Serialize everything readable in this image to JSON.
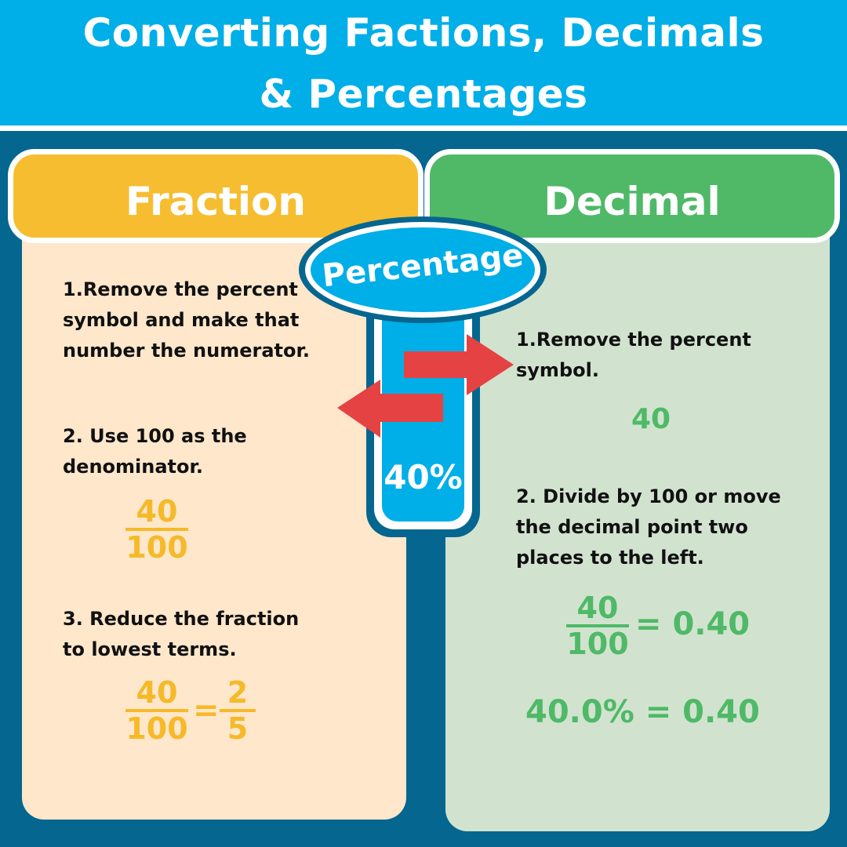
{
  "header": {
    "title_line1": "Converting Factions, Decimals",
    "title_line2": "& Percentages"
  },
  "colors": {
    "header_blue": "#00aee8",
    "background_navy": "#05668f",
    "fraction_yellow": "#f6bd30",
    "fraction_panel": "#fee7cb",
    "decimal_green": "#4fb967",
    "decimal_panel": "#d1e3cf",
    "arrow_red": "#e54343"
  },
  "center": {
    "badge": "Percentage",
    "value": "40%",
    "arrow_icons": [
      "arrow-right-icon",
      "arrow-left-icon"
    ]
  },
  "fraction": {
    "title": "Fraction",
    "step1_line1": "1.Remove the percent",
    "step1_line2": "symbol and make that",
    "step1_line3": "number the numerator.",
    "step2_line1": "2. Use 100 as the",
    "step2_line2": "denominator.",
    "example1": {
      "numerator": "40",
      "denominator": "100"
    },
    "step3_line1": "3. Reduce the fraction",
    "step3_line2": "to lowest terms.",
    "example2": {
      "numerator": "40",
      "denominator": "100",
      "equals": "=",
      "reduced_numerator": "2",
      "reduced_denominator": "5"
    }
  },
  "decimal": {
    "title": "Decimal",
    "step1_line1": "1.Remove the percent",
    "step1_line2": "symbol.",
    "step1_result": "40",
    "step2_line1": "2. Divide by 100 or move",
    "step2_line2": "the decimal point two",
    "step2_line3": "places to the left.",
    "example1": {
      "numerator": "40",
      "denominator": "100",
      "result": "= 0.40"
    },
    "example2": "40.0% = 0.40"
  }
}
